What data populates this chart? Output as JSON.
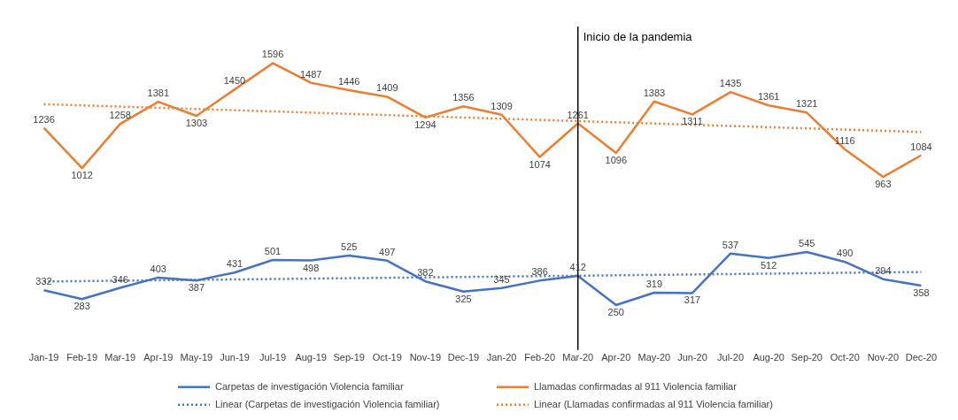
{
  "chart_data": {
    "type": "line",
    "categories": [
      "Jan-19",
      "Feb-19",
      "Mar-19",
      "Apr-19",
      "May-19",
      "Jun-19",
      "Jul-19",
      "Aug-19",
      "Sep-19",
      "Oct-19",
      "Nov-19",
      "Dec-19",
      "Jan-20",
      "Feb-20",
      "Mar-20",
      "Apr-20",
      "May-20",
      "Jun-20",
      "Jul-20",
      "Aug-20",
      "Sep-20",
      "Oct-20",
      "Nov-20",
      "Dec-20"
    ],
    "series": [
      {
        "name": "Carpetas de investigación Violencia familiar",
        "color": "#4472c4",
        "values": [
          332,
          283,
          346,
          403,
          387,
          431,
          501,
          498,
          525,
          497,
          382,
          325,
          345,
          386,
          412,
          250,
          319,
          317,
          537,
          512,
          545,
          490,
          394,
          358
        ],
        "data_labels": true
      },
      {
        "name": "Llamadas confirmadas al 911 Violencia familiar",
        "color": "#ed7d31",
        "values": [
          1236,
          1012,
          1258,
          1381,
          1303,
          1450,
          1596,
          1487,
          1446,
          1409,
          1294,
          1356,
          1309,
          1074,
          1261,
          1096,
          1383,
          1311,
          1435,
          1361,
          1321,
          1116,
          963,
          1084
        ],
        "data_labels": true
      },
      {
        "name": "Linear (Carpetas de investigación Violencia familiar)",
        "color": "#4472c4",
        "x": [
          "Jan-19",
          "Dec-20"
        ],
        "values": [
          381,
          434
        ],
        "line_style": "dotted"
      },
      {
        "name": "Linear (Llamadas confirmadas al 911 Violencia familiar)",
        "color": "#ed7d31",
        "x": [
          "Jan-19",
          "Dec-20"
        ],
        "values": [
          1368,
          1213
        ],
        "line_style": "dotted"
      }
    ],
    "ylim": [
      0,
      1800
    ],
    "tick_labels": "x",
    "grid": false,
    "marker": "none",
    "legend": "bottom",
    "ref_lines": [
      {
        "axis": "x",
        "value": "Mar-20",
        "label": "Inicio de la pandemia",
        "color": "#000000"
      }
    ]
  }
}
